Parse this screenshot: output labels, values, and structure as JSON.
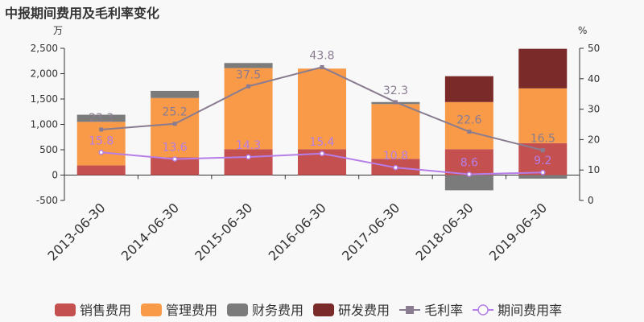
{
  "chart_data": {
    "type": "bar",
    "title": "中报期间费用及毛利率变化",
    "left_unit": "万",
    "right_unit": "%",
    "categories": [
      "2013-06-30",
      "2014-06-30",
      "2015-06-30",
      "2016-06-30",
      "2017-06-30",
      "2018-06-30",
      "2019-06-30"
    ],
    "y_left": {
      "min": -500,
      "max": 2500,
      "ticks": [
        -500,
        0,
        500,
        1000,
        1500,
        2000,
        2500
      ]
    },
    "y_right": {
      "min": 0,
      "max": 50,
      "ticks": [
        0,
        10,
        20,
        30,
        40,
        50
      ]
    },
    "grid": false,
    "legend_position": "bottom",
    "bar_series": [
      {
        "name": "销售费用",
        "color": "#c55050",
        "values": [
          190,
          350,
          510,
          510,
          320,
          510,
          630
        ]
      },
      {
        "name": "管理费用",
        "color": "#f89a48",
        "values": [
          860,
          1170,
          1600,
          1590,
          1080,
          930,
          1080
        ]
      },
      {
        "name": "财务费用",
        "color": "#7b7b7b",
        "values": [
          140,
          140,
          100,
          0,
          40,
          -300,
          -70
        ]
      },
      {
        "name": "研发费用",
        "color": "#7b2a2a",
        "values": [
          0,
          0,
          0,
          0,
          0,
          510,
          780
        ]
      }
    ],
    "line_series": [
      {
        "name": "毛利率",
        "color": "#8a7c90",
        "marker": "square",
        "values": [
          23.3,
          25.2,
          37.5,
          43.8,
          32.3,
          22.6,
          16.5
        ],
        "labels": [
          "23.3",
          "25.2",
          "37.5",
          "43.8",
          "32.3",
          "22.6",
          "16.5"
        ]
      },
      {
        "name": "期间费用率",
        "color": "#b57ee8",
        "marker": "circle",
        "values": [
          15.8,
          13.6,
          14.3,
          15.4,
          10.8,
          8.6,
          9.2
        ],
        "labels": [
          "15.8",
          "13.6",
          "14.3",
          "15.4",
          "10.8",
          "8.6",
          "9.2"
        ]
      }
    ]
  }
}
